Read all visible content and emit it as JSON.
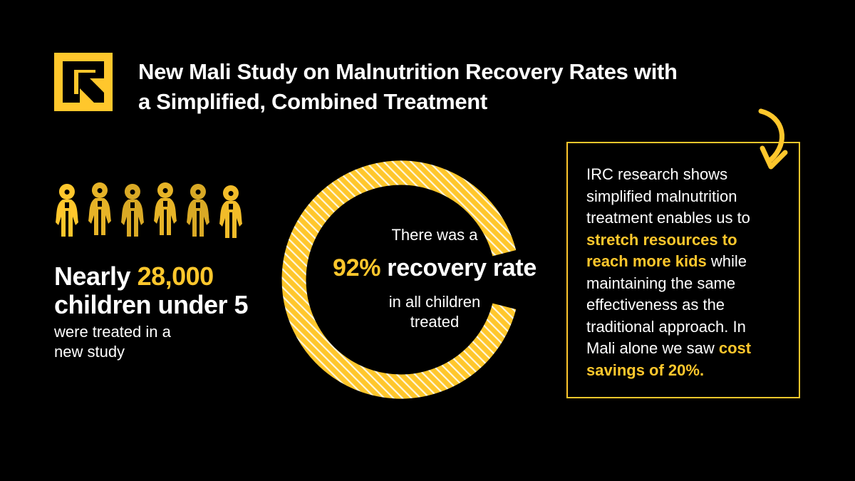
{
  "colors": {
    "accent": "#FFC72C",
    "background": "#000000",
    "text": "#FFFFFF"
  },
  "logo": {
    "icon": "irc-logo-icon"
  },
  "title": {
    "line1": "New Mali Study on Malnutrition Recovery Rates with",
    "line2": "a Simplified, Combined Treatment"
  },
  "children_stat": {
    "icon": "children-figures-icon",
    "prefix": "Nearly",
    "number": "28,000",
    "line2": "children under 5",
    "sub_line1": "were treated in a",
    "sub_line2": "new study"
  },
  "recovery": {
    "progress_fraction": 0.92,
    "pre": "There was a",
    "percent": "92%",
    "label": "recovery rate",
    "post_line1": "in all children",
    "post_line2": "treated"
  },
  "research_box": {
    "arrow_icon": "curved-arrow-icon",
    "l1": "IRC research shows",
    "l2": "simplified malnutrition",
    "l3": "treatment enables us to",
    "l4_hl": "stretch resources to",
    "l5_hl": "reach more kids",
    "l5_rest": " while",
    "l6": "maintaining the same",
    "l7": "effectiveness as the",
    "l8": "traditional approach. In",
    "l9": "Mali alone we saw ",
    "l9_hl": "cost",
    "l10_hl": "savings of 20%."
  }
}
